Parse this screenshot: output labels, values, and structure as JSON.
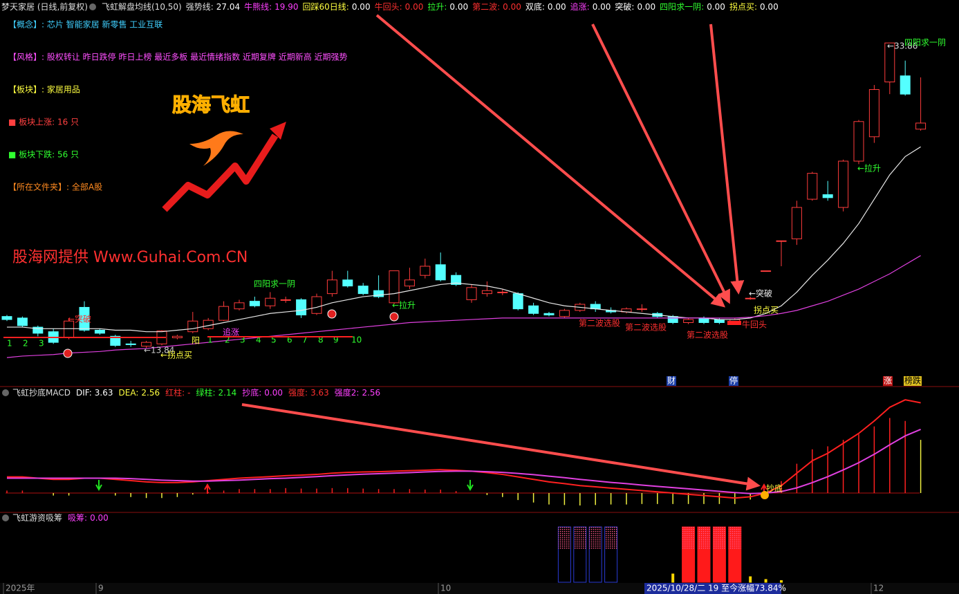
{
  "header": {
    "stock": "梦天家居 (日线,前复权)",
    "indicator": "飞虹解盘均线(10,50)",
    "items": [
      {
        "label": "强势线:",
        "value": "27.04"
      },
      {
        "label": "牛熊线:",
        "value": "19.90"
      },
      {
        "label": "回踩60日线:",
        "value": "0.00"
      },
      {
        "label": "牛回头:",
        "value": "0.00"
      },
      {
        "label": "拉升:",
        "value": "0.00"
      },
      {
        "label": "第二波:",
        "value": "0.00"
      },
      {
        "label": "双底:",
        "value": "0.00"
      },
      {
        "label": "追涨:",
        "value": "0.00"
      },
      {
        "label": "突破:",
        "value": "0.00"
      },
      {
        "label": "四阳求一阴:",
        "value": "0.00"
      },
      {
        "label": "拐点买:",
        "value": "0.00"
      }
    ]
  },
  "info": [
    "【概念】: 芯片 智能家居 新零售 工业互联",
    "【风格】: 股权转让 昨日跌停 昨日上榜 最近多板 最近情绪指数 近期复牌 近期新高 近期强势",
    "【板块】: 家居用品",
    "■ 板块上涨: 16 只",
    "■ 板块下跌: 56 只",
    "【所在文件夹】: 全部A股"
  ],
  "logo": "股海飞虹",
  "watermark": "股海网提供 Www.Guhai.Com.CN",
  "chart_data": [
    {
      "type": "candlestick",
      "ylim": [
        11.39,
        36.68
      ],
      "up_color": "#ff3c3c",
      "down_color": "#54ffff",
      "open": [
        15.9,
        15.8,
        15.2,
        14.9,
        14.5,
        16.5,
        15.0,
        14.6,
        14.1,
        13.95,
        14.1,
        14.5,
        14.9,
        15.1,
        15.65,
        16.4,
        16.9,
        16.6,
        17.0,
        17.0,
        16.1,
        17.4,
        18.3,
        17.9,
        17.6,
        16.8,
        17.9,
        18.6,
        19.3,
        18.6,
        17.0,
        17.4,
        17.5,
        17.4,
        16.6,
        16.1,
        15.9,
        16.3,
        16.7,
        16.3,
        16.2,
        16.4,
        16.1,
        15.9,
        15.5,
        15.8,
        15.7,
        15.5,
        17.1,
        18.9,
        20.87,
        21.0,
        23.6,
        23.9,
        23.06,
        26.1,
        27.7,
        31.3,
        31.7,
        28.2
      ],
      "high": [
        16.0,
        15.9,
        15.3,
        15.1,
        15.8,
        16.9,
        15.1,
        14.7,
        14.3,
        14.3,
        15.0,
        14.7,
        16.2,
        15.8,
        16.9,
        17.0,
        17.2,
        17.5,
        17.2,
        17.1,
        17.4,
        18.9,
        18.9,
        18.1,
        18.6,
        18.9,
        19.1,
        19.7,
        20.1,
        18.8,
        18.0,
        18.2,
        17.7,
        17.5,
        16.8,
        16.2,
        16.4,
        16.8,
        16.9,
        16.5,
        16.5,
        16.7,
        16.2,
        16.0,
        15.8,
        15.9,
        15.8,
        15.8,
        17.2,
        18.9,
        20.87,
        23.5,
        25.4,
        24.8,
        26.2,
        28.8,
        31.1,
        33.86,
        32.7,
        31.6
      ],
      "low": [
        15.6,
        15.2,
        14.6,
        14.1,
        14.4,
        14.9,
        14.7,
        13.9,
        13.9,
        13.84,
        14.0,
        14.4,
        14.8,
        15.0,
        15.6,
        16.3,
        16.5,
        16.4,
        16.8,
        15.8,
        16.0,
        17.2,
        17.8,
        17.3,
        17.1,
        16.7,
        17.7,
        18.4,
        18.2,
        17.9,
        16.8,
        17.2,
        17.3,
        16.3,
        16.0,
        15.9,
        15.8,
        16.2,
        16.2,
        16.1,
        16.1,
        16.2,
        15.8,
        15.4,
        15.4,
        15.4,
        15.4,
        15.4,
        17.0,
        18.9,
        19.2,
        20.6,
        23.5,
        23.5,
        22.8,
        25.9,
        27.3,
        30.5,
        30.4,
        28.1
      ],
      "close": [
        15.7,
        15.3,
        14.8,
        14.2,
        15.6,
        15.0,
        14.8,
        14.0,
        14.05,
        14.2,
        14.95,
        14.6,
        15.6,
        15.65,
        16.56,
        16.8,
        16.6,
        17.1,
        17.0,
        16.0,
        17.2,
        18.3,
        17.9,
        17.4,
        17.2,
        18.9,
        18.3,
        19.2,
        18.3,
        18.0,
        17.8,
        17.6,
        17.5,
        16.4,
        16.1,
        16.0,
        16.3,
        16.7,
        16.4,
        16.2,
        16.4,
        16.4,
        15.9,
        15.5,
        15.7,
        15.5,
        15.5,
        15.7,
        17.1,
        18.9,
        20.87,
        23.06,
        25.3,
        23.7,
        26.1,
        28.7,
        30.8,
        33.86,
        30.5,
        28.6
      ],
      "series": [
        {
          "color": "#e8e8e8",
          "values": [
            15.2,
            15.2,
            15.1,
            15.1,
            15.1,
            15.1,
            15.1,
            15.0,
            15.0,
            14.9,
            14.9,
            15.0,
            15.1,
            15.3,
            15.5,
            15.7,
            15.9,
            16.1,
            16.2,
            16.3,
            16.5,
            16.8,
            17.0,
            17.2,
            17.3,
            17.4,
            17.6,
            17.8,
            18.0,
            18.1,
            18.0,
            17.9,
            17.7,
            17.4,
            17.1,
            16.8,
            16.6,
            16.5,
            16.4,
            16.3,
            16.2,
            16.1,
            16.0,
            15.9,
            15.8,
            15.8,
            15.7,
            15.7,
            15.8,
            16.1,
            16.6,
            17.5,
            18.6,
            19.6,
            20.7,
            22.0,
            23.6,
            25.2,
            26.4,
            27.04
          ]
        },
        {
          "color": "#e040e0",
          "values": [
            13.2,
            13.3,
            13.35,
            13.4,
            13.5,
            13.55,
            13.6,
            13.7,
            13.75,
            13.8,
            13.9,
            14.0,
            14.1,
            14.2,
            14.3,
            14.4,
            14.5,
            14.6,
            14.7,
            14.8,
            14.9,
            15.0,
            15.1,
            15.2,
            15.3,
            15.4,
            15.5,
            15.55,
            15.6,
            15.65,
            15.7,
            15.75,
            15.8,
            15.8,
            15.8,
            15.8,
            15.8,
            15.8,
            15.8,
            15.8,
            15.8,
            15.8,
            15.8,
            15.8,
            15.8,
            15.8,
            15.8,
            15.8,
            15.85,
            15.95,
            16.1,
            16.3,
            16.6,
            16.9,
            17.3,
            17.7,
            18.2,
            18.7,
            19.3,
            19.9
          ]
        }
      ],
      "annotations": [
        "←突破",
        "四阳求一阴",
        "←拉升",
        "←13.84",
        "←拐点买",
        "追涨",
        "阳",
        "1",
        "2",
        "3",
        "1",
        "2",
        "3",
        "4",
        "5",
        "6",
        "7",
        "8",
        "9",
        "10",
        "第二波选股",
        "第二波选股",
        "第二波选股",
        "牛回头",
        "←突破",
        "拐点买",
        "←拉升",
        "←33.86",
        "四阳求一阴",
        "财",
        "停",
        "涨",
        "榜跌"
      ]
    },
    {
      "type": "macd",
      "title": "飞虹抄底MACD",
      "items": [
        {
          "label": "DIF:",
          "value": "3.63"
        },
        {
          "label": "DEA:",
          "value": "2.56"
        },
        {
          "label": "红柱:",
          "value": "-"
        },
        {
          "label": "绿柱:",
          "value": "2.14"
        },
        {
          "label": "抄底:",
          "value": "0.00"
        },
        {
          "label": "强度:",
          "value": "3.63"
        },
        {
          "label": "强度2:",
          "value": "2.56"
        }
      ],
      "ylim": [
        -0.75,
        4.2
      ],
      "series": [
        {
          "color": "#ff2020",
          "values": [
            0.65,
            0.65,
            0.6,
            0.55,
            0.55,
            0.6,
            0.6,
            0.55,
            0.5,
            0.45,
            0.42,
            0.42,
            0.45,
            0.5,
            0.55,
            0.6,
            0.63,
            0.66,
            0.7,
            0.72,
            0.75,
            0.8,
            0.83,
            0.85,
            0.86,
            0.88,
            0.9,
            0.92,
            0.94,
            0.92,
            0.88,
            0.82,
            0.75,
            0.65,
            0.55,
            0.45,
            0.38,
            0.3,
            0.25,
            0.2,
            0.15,
            0.1,
            0.05,
            0.0,
            -0.05,
            -0.1,
            -0.15,
            -0.2,
            -0.15,
            0.0,
            0.3,
            0.8,
            1.3,
            1.6,
            2.0,
            2.4,
            2.9,
            3.45,
            3.75,
            3.63
          ]
        },
        {
          "color": "#e040e0",
          "values": [
            0.6,
            0.6,
            0.6,
            0.6,
            0.6,
            0.6,
            0.6,
            0.6,
            0.58,
            0.55,
            0.52,
            0.5,
            0.48,
            0.48,
            0.5,
            0.52,
            0.55,
            0.58,
            0.6,
            0.63,
            0.66,
            0.7,
            0.73,
            0.76,
            0.78,
            0.8,
            0.82,
            0.85,
            0.87,
            0.88,
            0.88,
            0.86,
            0.83,
            0.79,
            0.74,
            0.68,
            0.62,
            0.55,
            0.49,
            0.43,
            0.38,
            0.32,
            0.27,
            0.22,
            0.17,
            0.12,
            0.07,
            0.02,
            -0.02,
            0.0,
            0.06,
            0.21,
            0.42,
            0.66,
            0.93,
            1.22,
            1.56,
            1.94,
            2.3,
            2.56
          ]
        }
      ],
      "histogram": [
        0.1,
        0.1,
        0,
        -0.1,
        -0.1,
        0,
        0,
        -0.1,
        -0.16,
        -0.2,
        -0.2,
        -0.16,
        -0.06,
        0.04,
        0.1,
        0.16,
        0.16,
        0.16,
        0.2,
        0.18,
        0.18,
        0.2,
        0.2,
        0.18,
        0.16,
        0.16,
        0.16,
        0.14,
        0.14,
        0.08,
        0,
        -0.08,
        -0.16,
        -0.28,
        -0.38,
        -0.46,
        -0.48,
        -0.5,
        -0.48,
        -0.46,
        -0.46,
        -0.44,
        -0.44,
        -0.44,
        -0.44,
        -0.44,
        -0.44,
        -0.44,
        -0.26,
        0,
        0.48,
        1.18,
        1.76,
        1.88,
        2.14,
        2.36,
        2.68,
        3.02,
        2.9,
        2.14
      ],
      "up_color": "#ff2020",
      "down_color": "#f0f040",
      "annotations": [
        "抄底"
      ]
    },
    {
      "type": "bar",
      "title": "飞虹游资吸筹",
      "items": [
        {
          "label": "吸筹:",
          "value": "0.00"
        }
      ],
      "ylim": [
        0,
        100
      ],
      "values": [
        0,
        0,
        0,
        0,
        0,
        0,
        0,
        0,
        0,
        0,
        0,
        0,
        0,
        0,
        0,
        0,
        0,
        0,
        0,
        0,
        0,
        0,
        0,
        0,
        0,
        0,
        0,
        0,
        0,
        0,
        0,
        0,
        0,
        0,
        0,
        0,
        100,
        100,
        100,
        100,
        0,
        0,
        0,
        15,
        100,
        100,
        100,
        100,
        10,
        5,
        3,
        0,
        0,
        0,
        0,
        0,
        0,
        0,
        0,
        0
      ],
      "colors": [
        "#ffd800",
        "#ffd800",
        "#ffd800",
        "#ffd800",
        "#ffd800",
        "#ffd800",
        "#ffd800",
        "#ffd800",
        "#ffd800",
        "#ffd800",
        "#ffd800",
        "#ffd800",
        "#ffd800",
        "#ffd800",
        "#ffd800",
        "#ffd800",
        "#ffd800",
        "#ffd800",
        "#ffd800",
        "#ffd800",
        "#ffd800",
        "#ffd800",
        "#ffd800",
        "#ffd800",
        "#ffd800",
        "#ffd800",
        "#ffd800",
        "#ffd800",
        "#ffd800",
        "#ffd800",
        "#ffd800",
        "#ffd800",
        "#ffd800",
        "#ffd800",
        "#ffd800",
        "#ffd800",
        "#2b3bd6",
        "#2b3bd6",
        "#2b3bd6",
        "#2b3bd6",
        "#ffd800",
        "#ffd800",
        "#ffd800",
        "#ffd800",
        "#ff1a1a",
        "#ff1a1a",
        "#ff1a1a",
        "#ff1a1a",
        "#ffd800",
        "#ffd800",
        "#ffd800",
        "#ffd800",
        "#ffd800",
        "#ffd800",
        "#ffd800",
        "#ffd800",
        "#ffd800",
        "#ffd800",
        "#ffd800",
        "#ffd800"
      ]
    }
  ],
  "footer": {
    "labels": [
      "2025年",
      "9",
      "10",
      "12"
    ],
    "status": "2025/10/28/二 19 至今涨幅73.84%"
  }
}
